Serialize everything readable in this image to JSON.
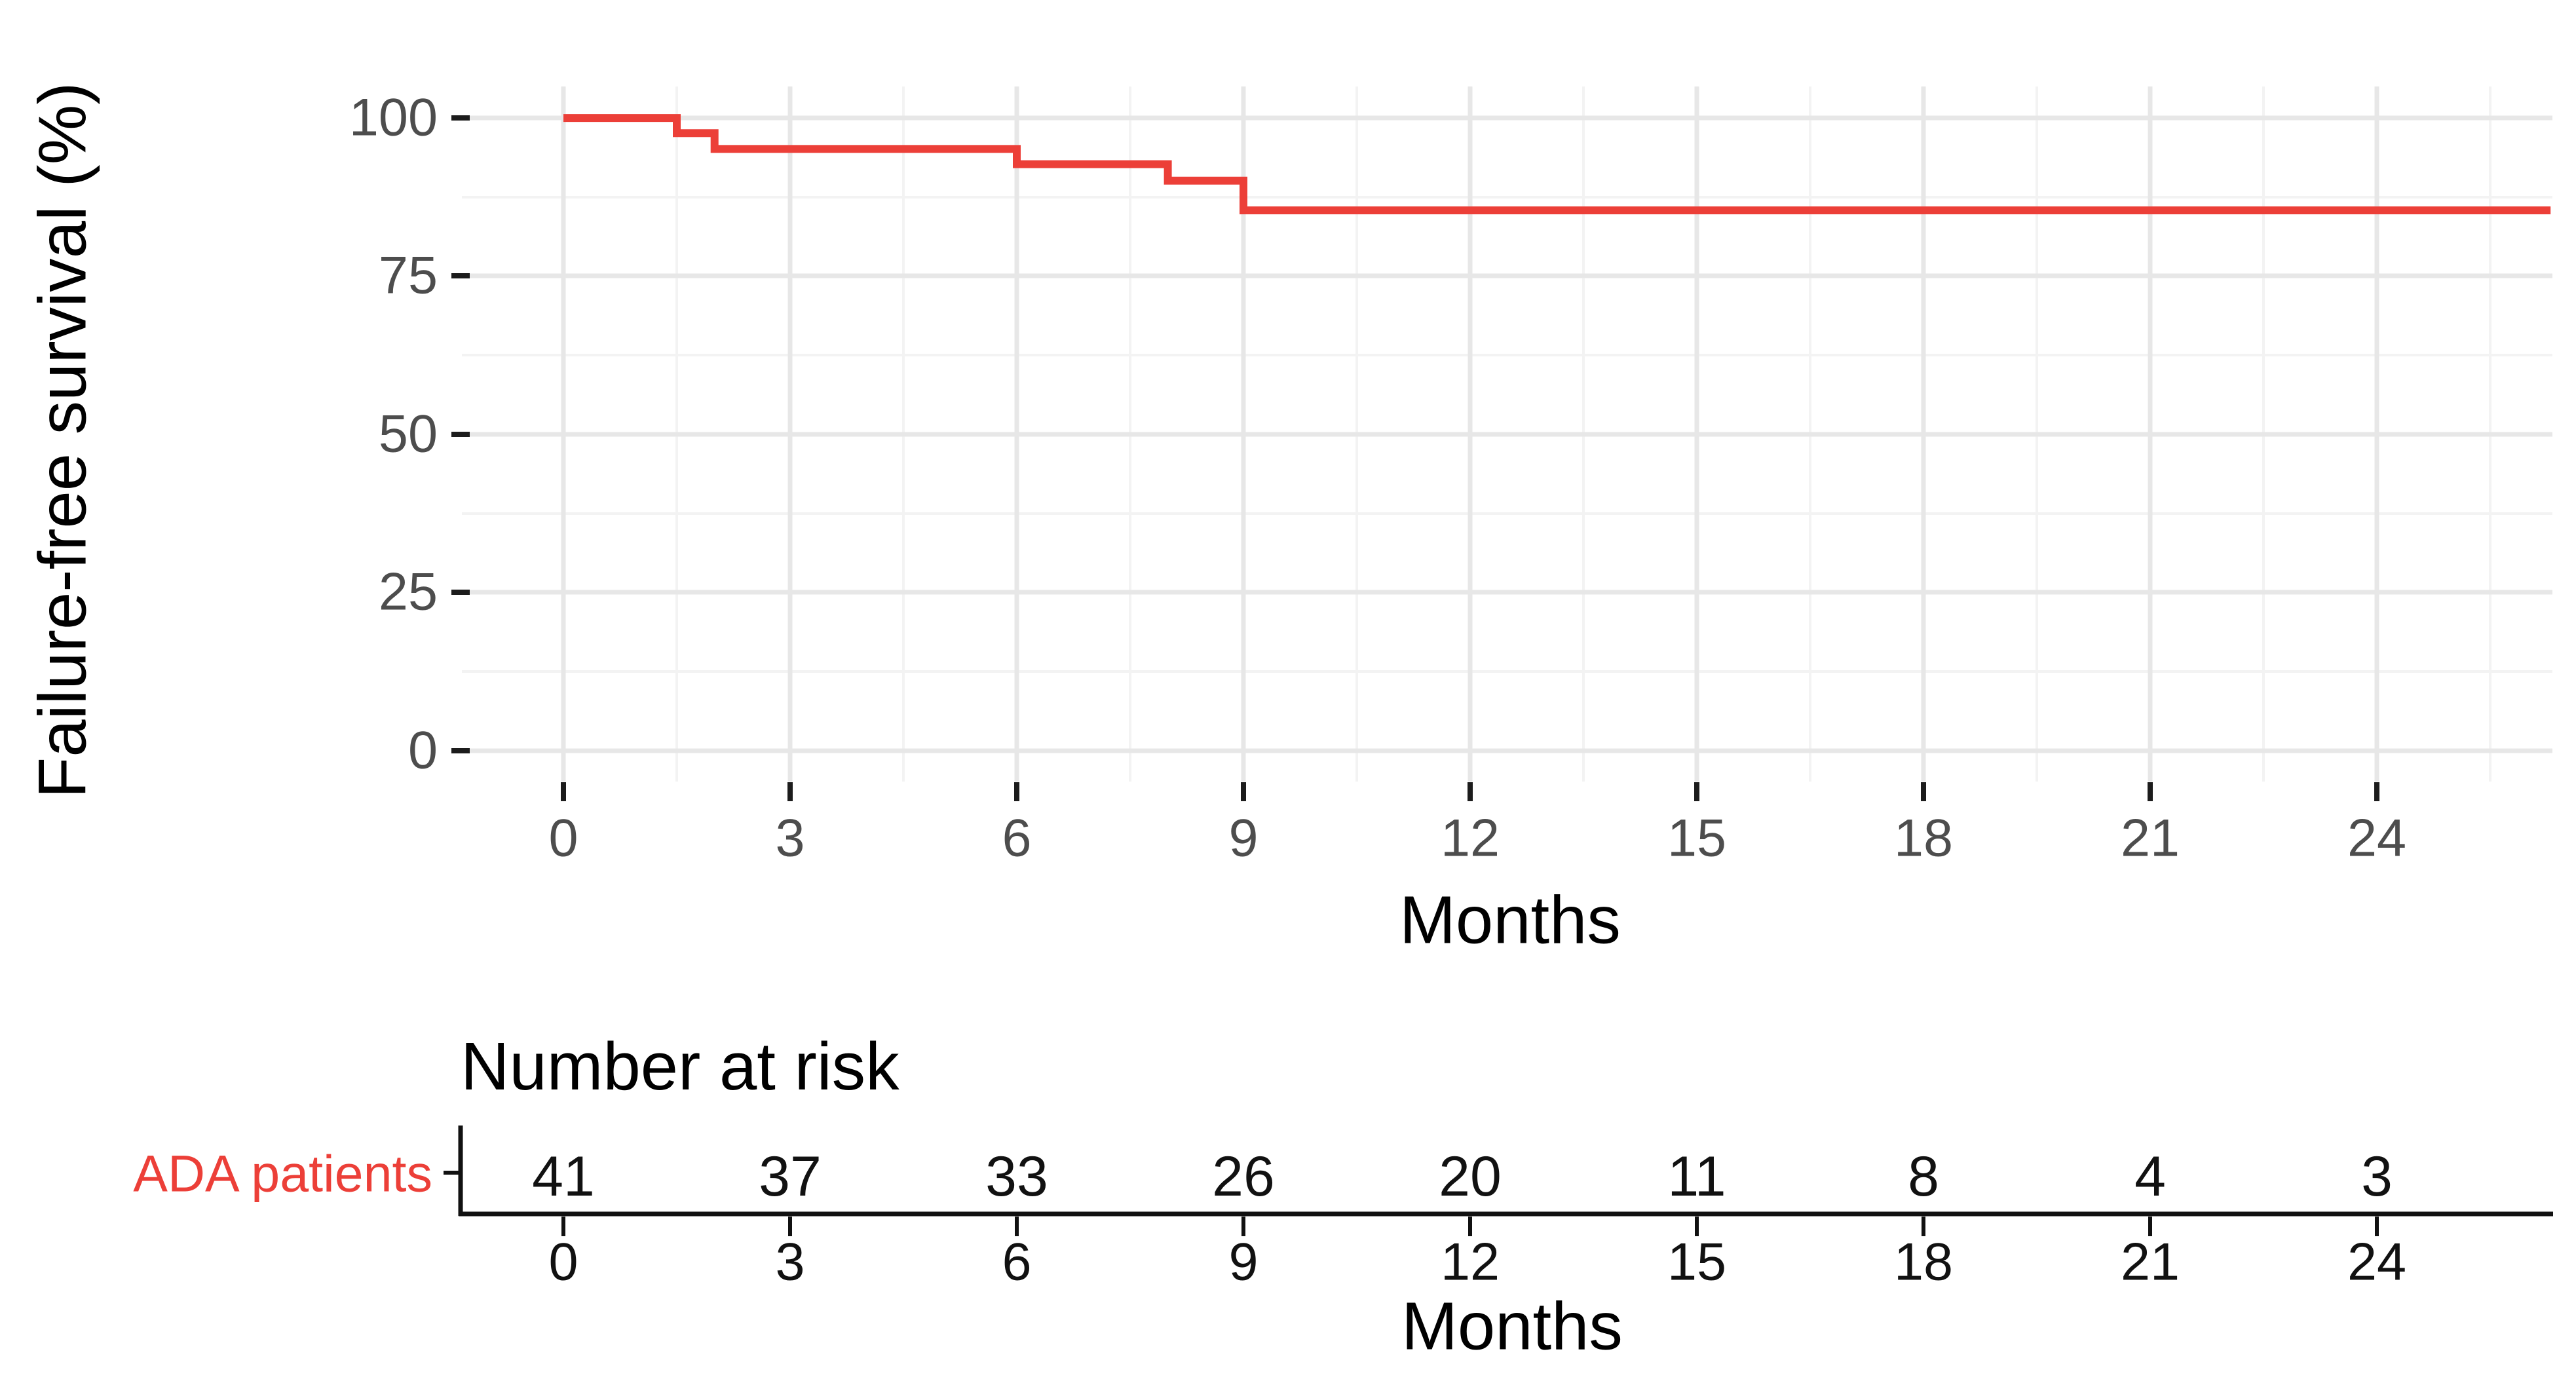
{
  "figure": {
    "y_axis_title": "Failure-free survival (%)",
    "x_axis_title": "Months",
    "risk_table": {
      "title": "Number at risk",
      "group_label": "ADA patients",
      "x_axis_title": "Months"
    }
  },
  "colors": {
    "curve_red": "#ec3f38",
    "axis_text_grey": "#4d4d4d",
    "text_black": "#000000",
    "grid_major": "#e7e7e7",
    "grid_minor": "#f3f3f3"
  },
  "chart_data": {
    "type": "line",
    "subtype": "kaplan-meier-step-curve",
    "title": "",
    "xlabel": "Months",
    "ylabel": "Failure-free survival (%)",
    "xlim": [
      -1.3,
      26.3
    ],
    "ylim": [
      -5,
      105
    ],
    "x_ticks": [
      0,
      3,
      6,
      9,
      12,
      15,
      18,
      21,
      24
    ],
    "y_ticks": [
      100,
      75,
      50,
      25,
      0
    ],
    "grid": "major and minor, light grey on white",
    "legend_position": "none",
    "series": [
      {
        "name": "ADA patients",
        "color": "#ec3f38",
        "step_points": [
          {
            "time": 0,
            "survival": 100
          },
          {
            "time": 1.5,
            "survival": 97.6
          },
          {
            "time": 2,
            "survival": 95.1
          },
          {
            "time": 6,
            "survival": 92.7
          },
          {
            "time": 8,
            "survival": 90.1
          },
          {
            "time": 9,
            "survival": 85.4
          }
        ],
        "end_time": 26.3,
        "censor_marks": "none"
      }
    ],
    "number_at_risk": {
      "row_label": "ADA patients",
      "times": [
        0,
        3,
        6,
        9,
        12,
        15,
        18,
        21,
        24
      ],
      "counts": [
        41,
        37,
        33,
        26,
        20,
        11,
        8,
        4,
        3
      ]
    }
  }
}
